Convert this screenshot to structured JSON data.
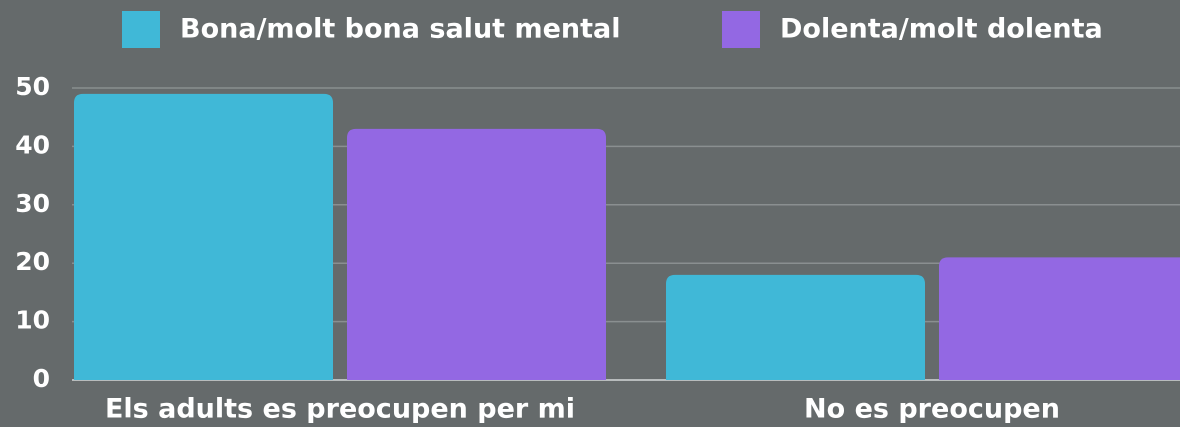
{
  "chart_data": {
    "type": "bar",
    "categories": [
      "Els adults es preocupen per mi",
      "No es preocupen"
    ],
    "series": [
      {
        "name": "Bona/molt bona salut mental",
        "color": "#40b8d7",
        "values": [
          49,
          18
        ]
      },
      {
        "name": "Dolenta/molt dolenta",
        "color": "#9368e3",
        "values": [
          43,
          21
        ]
      }
    ],
    "ylim": [
      0,
      50
    ],
    "yticks": [
      0,
      10,
      20,
      30,
      40,
      50
    ],
    "grid": true,
    "legend": "top"
  }
}
